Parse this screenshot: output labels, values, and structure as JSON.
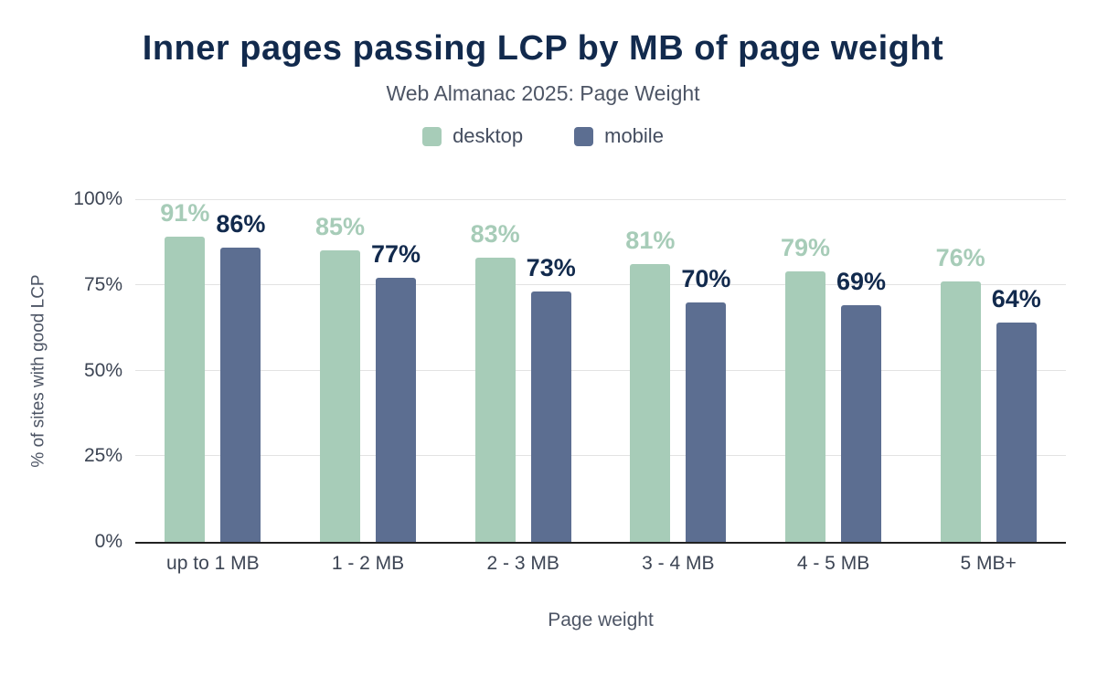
{
  "chart_data": {
    "type": "bar",
    "title": "Inner pages passing LCP by MB of page weight",
    "subtitle": "Web Almanac 2025: Page Weight",
    "xlabel": "Page weight",
    "ylabel": "% of sites with good LCP",
    "categories": [
      "up to 1 MB",
      "1 - 2 MB",
      "2 - 3 MB",
      "3 - 4 MB",
      "4 - 5 MB",
      "5 MB+"
    ],
    "series": [
      {
        "name": "desktop",
        "color": "#a7ccb8",
        "values": [
          91,
          85,
          83,
          81,
          79,
          76
        ]
      },
      {
        "name": "mobile",
        "color": "#5c6e91",
        "values": [
          86,
          77,
          73,
          70,
          69,
          64
        ]
      }
    ],
    "value_label_colors": {
      "desktop": "#a7ccb8",
      "mobile": "#122a4d"
    },
    "value_label_suffix": "%",
    "ylim": [
      0,
      100
    ],
    "yticks": [
      0,
      25,
      50,
      75,
      100
    ],
    "ytick_labels": [
      "0%",
      "25%",
      "50%",
      "75%",
      "100%"
    ],
    "grid": true,
    "legend_position": "top",
    "colors": {
      "title": "#122a4d",
      "axis_line": "#222222",
      "gridline": "#e3e3e3",
      "background": "#ffffff"
    }
  }
}
